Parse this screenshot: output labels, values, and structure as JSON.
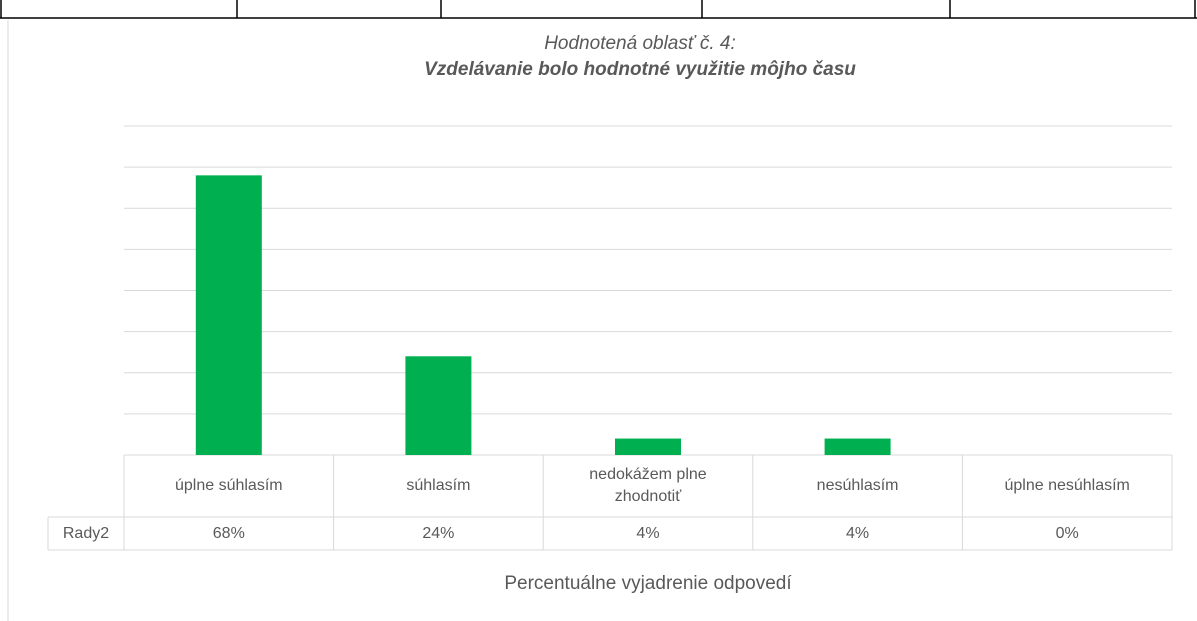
{
  "chart_data": {
    "type": "bar",
    "title": "Hodnotená oblasť č. 4:",
    "subtitle": "Vzdelávanie bolo hodnotné využitie môjho času",
    "x_label": "Percentuálne vyjadrenie odpovedí",
    "categories": [
      "úplne súhlasím",
      "súhlasím",
      "nedokážem plne zhodnotiť",
      "nesúhlasím",
      "úplne nesúhlasím"
    ],
    "series": [
      {
        "name": "Rady2",
        "color": "#00b050",
        "values": [
          68,
          24,
          4,
          4,
          0
        ],
        "value_labels": [
          "68%",
          "24%",
          "4%",
          "4%",
          "0%"
        ]
      }
    ],
    "ylim": [
      0,
      80
    ],
    "yticks": [
      0,
      10,
      20,
      30,
      40,
      50,
      60,
      70,
      80
    ],
    "grid": true
  }
}
